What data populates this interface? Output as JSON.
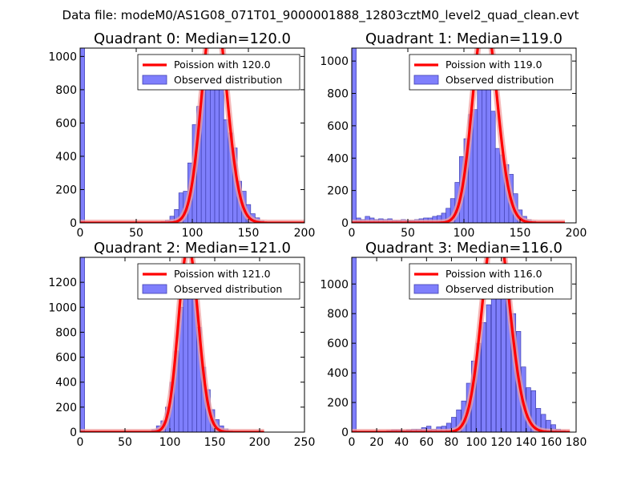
{
  "chart_data": {
    "suptitle": "Data file: modeM0/AS1G08_071T01_9000001888_12803cztM0_level2_quad_clean.evt",
    "colors": {
      "bar_fill": "#7f7ffc",
      "bar_edge": "#4040b0",
      "curve": "#ff0000",
      "curve_shadow": "#f2a0a0"
    },
    "charts": [
      {
        "type": "bar",
        "title": "Quadrant 0: Median=120.0",
        "xlim": [
          0,
          200
        ],
        "ylim": [
          0,
          1050
        ],
        "xticks": [
          0,
          50,
          100,
          150,
          200
        ],
        "yticks": [
          0,
          200,
          400,
          600,
          800,
          1000
        ],
        "bin_width": 4,
        "bins": [
          [
            0,
            1050
          ],
          [
            68,
            5
          ],
          [
            72,
            8
          ],
          [
            76,
            15
          ],
          [
            80,
            40
          ],
          [
            84,
            80
          ],
          [
            88,
            180
          ],
          [
            92,
            190
          ],
          [
            96,
            360
          ],
          [
            100,
            590
          ],
          [
            104,
            700
          ],
          [
            108,
            840
          ],
          [
            112,
            1000
          ],
          [
            116,
            1010
          ],
          [
            120,
            880
          ],
          [
            124,
            820
          ],
          [
            128,
            620
          ],
          [
            132,
            540
          ],
          [
            136,
            450
          ],
          [
            140,
            250
          ],
          [
            144,
            190
          ],
          [
            148,
            110
          ],
          [
            152,
            55
          ],
          [
            156,
            30
          ],
          [
            160,
            12
          ],
          [
            164,
            5
          ]
        ],
        "poisson_mu": 120.0,
        "curve_xmax": 200,
        "legend": {
          "line": "Poission with 120.0",
          "bar": "Observed distribution"
        }
      },
      {
        "type": "bar",
        "title": "Quadrant 1: Median=119.0",
        "xlim": [
          0,
          200
        ],
        "ylim": [
          0,
          1080
        ],
        "xticks": [
          0,
          50,
          100,
          150,
          200
        ],
        "yticks": [
          0,
          200,
          400,
          600,
          800,
          1000
        ],
        "bin_width": 4,
        "bins": [
          [
            0,
            1080
          ],
          [
            4,
            30
          ],
          [
            8,
            20
          ],
          [
            12,
            40
          ],
          [
            16,
            30
          ],
          [
            20,
            20
          ],
          [
            24,
            25
          ],
          [
            28,
            20
          ],
          [
            32,
            25
          ],
          [
            36,
            15
          ],
          [
            40,
            15
          ],
          [
            44,
            20
          ],
          [
            48,
            15
          ],
          [
            52,
            15
          ],
          [
            56,
            20
          ],
          [
            60,
            25
          ],
          [
            64,
            30
          ],
          [
            68,
            30
          ],
          [
            72,
            40
          ],
          [
            76,
            45
          ],
          [
            80,
            60
          ],
          [
            84,
            90
          ],
          [
            88,
            150
          ],
          [
            92,
            250
          ],
          [
            96,
            410
          ],
          [
            100,
            520
          ],
          [
            104,
            670
          ],
          [
            108,
            700
          ],
          [
            112,
            900
          ],
          [
            116,
            960
          ],
          [
            120,
            920
          ],
          [
            124,
            690
          ],
          [
            128,
            460
          ],
          [
            132,
            420
          ],
          [
            136,
            360
          ],
          [
            140,
            300
          ],
          [
            144,
            180
          ],
          [
            148,
            80
          ],
          [
            152,
            40
          ],
          [
            156,
            20
          ],
          [
            160,
            10
          ],
          [
            164,
            5
          ]
        ],
        "poisson_mu": 119.0,
        "curve_xmax": 190,
        "legend": {
          "line": "Poission with 119.0",
          "bar": "Observed distribution"
        }
      },
      {
        "type": "bar",
        "title": "Quadrant 2: Median=121.0",
        "xlim": [
          0,
          250
        ],
        "ylim": [
          0,
          1400
        ],
        "xticks": [
          0,
          50,
          100,
          150,
          200,
          250
        ],
        "yticks": [
          0,
          200,
          400,
          600,
          800,
          1000,
          1200
        ],
        "bin_width": 5,
        "bins": [
          [
            0,
            1400
          ],
          [
            80,
            20
          ],
          [
            85,
            50
          ],
          [
            90,
            90
          ],
          [
            95,
            200
          ],
          [
            100,
            400
          ],
          [
            105,
            650
          ],
          [
            110,
            1000
          ],
          [
            115,
            1150
          ],
          [
            120,
            1320
          ],
          [
            125,
            1250
          ],
          [
            130,
            840
          ],
          [
            135,
            520
          ],
          [
            140,
            340
          ],
          [
            145,
            180
          ],
          [
            150,
            100
          ],
          [
            155,
            50
          ],
          [
            160,
            25
          ],
          [
            165,
            10
          ],
          [
            170,
            5
          ]
        ],
        "poisson_mu": 121.0,
        "curve_xmax": 205,
        "legend": {
          "line": "Poission with 121.0",
          "bar": "Observed distribution"
        }
      },
      {
        "type": "bar",
        "title": "Quadrant 3: Median=116.0",
        "xlim": [
          0,
          180
        ],
        "ylim": [
          0,
          1180
        ],
        "xticks": [
          0,
          20,
          40,
          60,
          80,
          100,
          120,
          140,
          160,
          180
        ],
        "yticks": [
          0,
          200,
          400,
          600,
          800,
          1000
        ],
        "bin_width": 3.6,
        "bins": [
          [
            0,
            1180
          ],
          [
            28,
            10
          ],
          [
            32,
            15
          ],
          [
            36,
            15
          ],
          [
            40,
            10
          ],
          [
            44,
            15
          ],
          [
            48,
            20
          ],
          [
            52,
            20
          ],
          [
            56,
            30
          ],
          [
            60,
            40
          ],
          [
            64,
            20
          ],
          [
            68,
            35
          ],
          [
            72,
            40
          ],
          [
            76,
            60
          ],
          [
            80,
            100
          ],
          [
            84,
            150
          ],
          [
            88,
            210
          ],
          [
            92,
            330
          ],
          [
            96,
            480
          ],
          [
            100,
            600
          ],
          [
            104,
            740
          ],
          [
            108,
            860
          ],
          [
            112,
            940
          ],
          [
            116,
            1020
          ],
          [
            120,
            1000
          ],
          [
            124,
            1090
          ],
          [
            128,
            800
          ],
          [
            132,
            680
          ],
          [
            136,
            440
          ],
          [
            140,
            300
          ],
          [
            144,
            280
          ],
          [
            148,
            160
          ],
          [
            152,
            120
          ],
          [
            156,
            80
          ],
          [
            160,
            50
          ],
          [
            164,
            20
          ],
          [
            168,
            10
          ]
        ],
        "poisson_mu": 116.0,
        "curve_xmax": 175,
        "legend": {
          "line": "Poission with 116.0",
          "bar": "Observed distribution"
        }
      }
    ]
  }
}
